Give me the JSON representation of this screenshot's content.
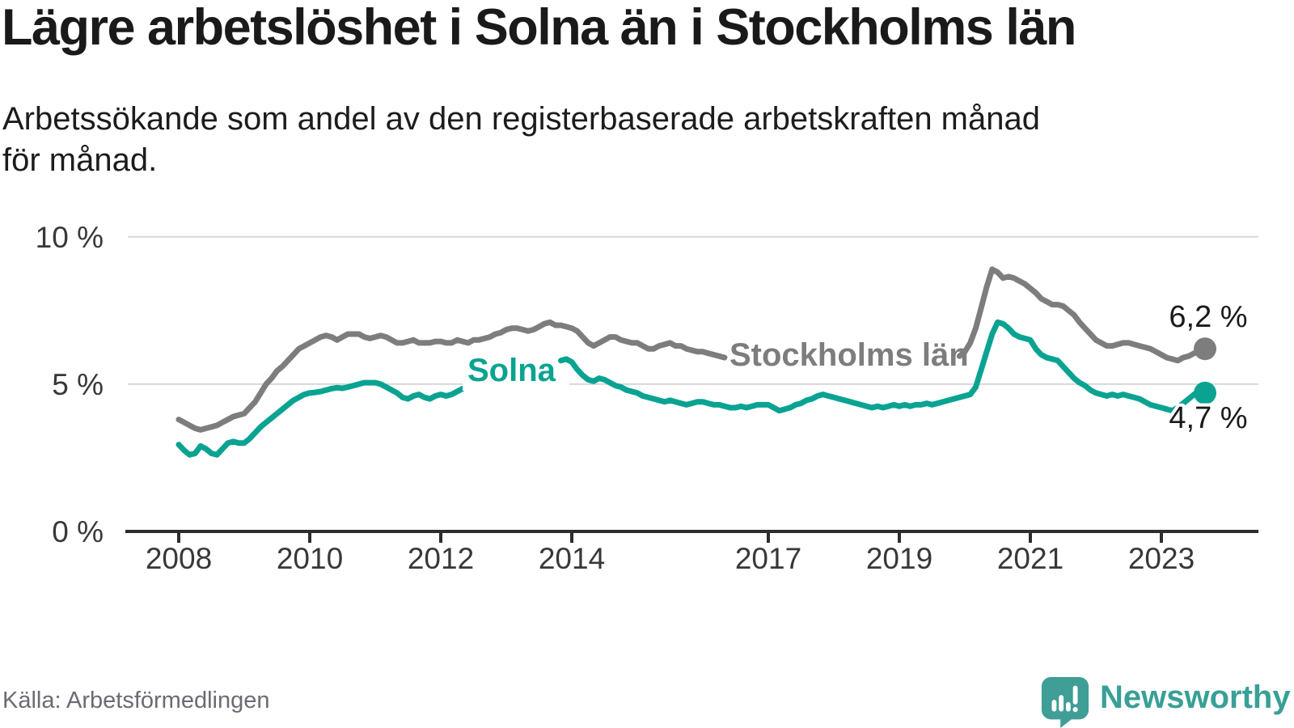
{
  "page": {
    "title": "Lägre arbetslöshet i Solna än i Stockholms län",
    "subtitle_line1": "Arbetssökande som andel av den registerbaserade arbetskraften månad",
    "subtitle_line2": "för månad.",
    "source": "Källa: Arbetsförmedlingen",
    "brand": "Newsworthy"
  },
  "colors": {
    "solna_line": "#0aa392",
    "stockholm_line": "#7d7d7d",
    "grid": "#d8d8d8",
    "axis": "#2d2d2d",
    "tick_text": "#383838",
    "logo": "#38a096",
    "end_label_text": "#1a1a1a"
  },
  "chart_data": {
    "type": "line",
    "unit": "%",
    "x_start_year": 2008,
    "x_resolution": "monthly",
    "ylim": [
      0,
      10.8
    ],
    "grid": "horizontal",
    "y_ticks": [
      {
        "value": 10,
        "label": "10 %"
      },
      {
        "value": 5,
        "label": "5 %"
      },
      {
        "value": 0,
        "label": "0 %"
      }
    ],
    "x_ticks": [
      {
        "year": 2008,
        "label": "2008"
      },
      {
        "year": 2010,
        "label": "2010"
      },
      {
        "year": 2012,
        "label": "2012"
      },
      {
        "year": 2014,
        "label": "2014"
      },
      {
        "year": 2017,
        "label": "2017"
      },
      {
        "year": 2019,
        "label": "2019"
      },
      {
        "year": 2021,
        "label": "2021"
      },
      {
        "year": 2023,
        "label": "2023"
      }
    ],
    "series": [
      {
        "name": "Stockholms län",
        "end_label": "6,2 %",
        "end_value": 6.2,
        "values": [
          3.8,
          3.7,
          3.6,
          3.5,
          3.45,
          3.5,
          3.55,
          3.6,
          3.7,
          3.8,
          3.9,
          3.95,
          4.0,
          4.2,
          4.4,
          4.7,
          5.0,
          5.2,
          5.45,
          5.6,
          5.8,
          6.0,
          6.2,
          6.3,
          6.4,
          6.5,
          6.6,
          6.65,
          6.6,
          6.5,
          6.6,
          6.7,
          6.7,
          6.7,
          6.6,
          6.55,
          6.6,
          6.65,
          6.6,
          6.5,
          6.4,
          6.4,
          6.45,
          6.5,
          6.4,
          6.4,
          6.4,
          6.45,
          6.45,
          6.4,
          6.4,
          6.5,
          6.45,
          6.4,
          6.5,
          6.5,
          6.55,
          6.6,
          6.7,
          6.75,
          6.85,
          6.9,
          6.9,
          6.85,
          6.8,
          6.85,
          6.95,
          7.05,
          7.1,
          7.0,
          7.0,
          6.95,
          6.9,
          6.8,
          6.6,
          6.4,
          6.3,
          6.4,
          6.5,
          6.6,
          6.6,
          6.5,
          6.45,
          6.4,
          6.4,
          6.3,
          6.2,
          6.2,
          6.3,
          6.35,
          6.4,
          6.3,
          6.3,
          6.2,
          6.15,
          6.1,
          6.1,
          6.05,
          6.0,
          5.95,
          5.9,
          5.85,
          5.8,
          5.75,
          5.7,
          5.65,
          5.6,
          5.6,
          5.6,
          5.55,
          5.5,
          5.5,
          5.45,
          5.4,
          5.45,
          5.5,
          5.5,
          5.45,
          5.4,
          5.4,
          5.4,
          5.35,
          5.3,
          5.3,
          5.35,
          5.4,
          5.45,
          5.5,
          5.45,
          5.4,
          5.45,
          5.5,
          5.5,
          5.5,
          5.55,
          5.6,
          5.6,
          5.65,
          5.7,
          5.75,
          5.8,
          5.85,
          5.9,
          5.95,
          6.1,
          6.4,
          6.9,
          7.6,
          8.3,
          8.9,
          8.8,
          8.6,
          8.65,
          8.6,
          8.5,
          8.4,
          8.25,
          8.1,
          7.9,
          7.8,
          7.7,
          7.7,
          7.65,
          7.5,
          7.35,
          7.1,
          6.9,
          6.7,
          6.5,
          6.4,
          6.3,
          6.3,
          6.35,
          6.4,
          6.4,
          6.35,
          6.3,
          6.25,
          6.2,
          6.1,
          6.0,
          5.9,
          5.85,
          5.8,
          5.9,
          5.95,
          6.05,
          6.1,
          6.2
        ]
      },
      {
        "name": "Solna",
        "end_label": "4,7 %",
        "end_value": 4.7,
        "values": [
          2.95,
          2.75,
          2.6,
          2.65,
          2.9,
          2.8,
          2.65,
          2.6,
          2.8,
          3.0,
          3.05,
          3.0,
          3.0,
          3.15,
          3.35,
          3.55,
          3.7,
          3.85,
          4.0,
          4.15,
          4.3,
          4.45,
          4.55,
          4.65,
          4.7,
          4.72,
          4.75,
          4.8,
          4.85,
          4.88,
          4.86,
          4.9,
          4.95,
          5.0,
          5.05,
          5.05,
          5.05,
          5.0,
          4.9,
          4.8,
          4.7,
          4.55,
          4.5,
          4.6,
          4.65,
          4.55,
          4.5,
          4.6,
          4.65,
          4.6,
          4.65,
          4.75,
          4.85,
          4.9,
          5.0,
          5.05,
          5.1,
          5.2,
          5.3,
          5.4,
          5.5,
          5.55,
          5.6,
          5.65,
          5.7,
          5.75,
          5.8,
          5.82,
          5.85,
          5.82,
          5.8,
          5.85,
          5.75,
          5.5,
          5.3,
          5.15,
          5.1,
          5.2,
          5.15,
          5.05,
          4.95,
          4.9,
          4.8,
          4.75,
          4.7,
          4.6,
          4.55,
          4.5,
          4.45,
          4.4,
          4.45,
          4.4,
          4.35,
          4.3,
          4.35,
          4.4,
          4.4,
          4.35,
          4.3,
          4.3,
          4.25,
          4.2,
          4.2,
          4.25,
          4.2,
          4.25,
          4.3,
          4.3,
          4.3,
          4.2,
          4.1,
          4.15,
          4.2,
          4.3,
          4.35,
          4.45,
          4.5,
          4.6,
          4.65,
          4.6,
          4.55,
          4.5,
          4.45,
          4.4,
          4.35,
          4.3,
          4.25,
          4.2,
          4.25,
          4.2,
          4.25,
          4.3,
          4.25,
          4.3,
          4.25,
          4.3,
          4.3,
          4.35,
          4.3,
          4.35,
          4.4,
          4.45,
          4.5,
          4.55,
          4.6,
          4.65,
          4.9,
          5.5,
          6.1,
          6.7,
          7.1,
          7.05,
          6.9,
          6.7,
          6.6,
          6.55,
          6.5,
          6.2,
          6.0,
          5.9,
          5.85,
          5.8,
          5.6,
          5.4,
          5.2,
          5.05,
          4.95,
          4.8,
          4.7,
          4.65,
          4.6,
          4.65,
          4.6,
          4.65,
          4.6,
          4.55,
          4.5,
          4.4,
          4.3,
          4.25,
          4.2,
          4.15,
          4.1,
          4.2,
          4.35,
          4.5,
          4.65,
          4.75,
          4.7
        ]
      }
    ]
  }
}
